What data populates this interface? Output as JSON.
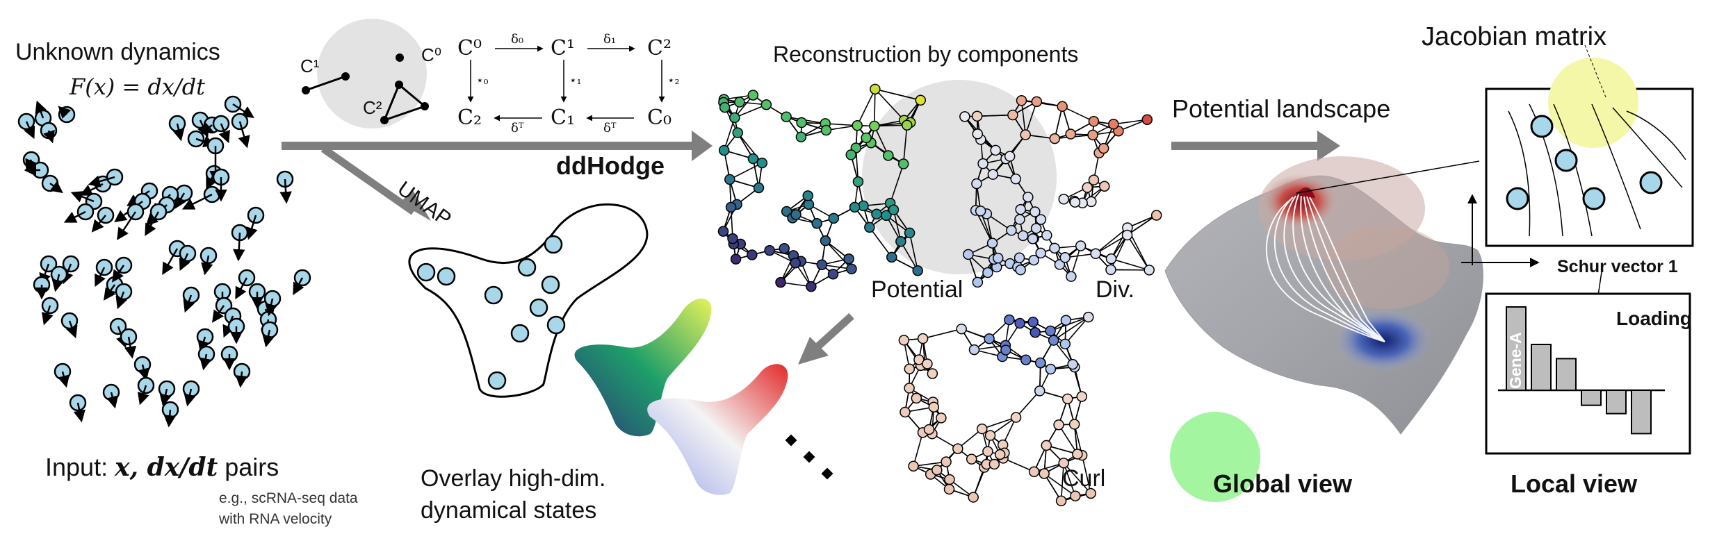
{
  "panel_input": {
    "title": "Unknown dynamics",
    "formula": "F(x) = dx/dt",
    "input_label": "Input:",
    "input_math": "x, dx/dt",
    "input_suffix": "pairs",
    "example_line1": "e.g., scRNA-seq data",
    "example_line2": "with RNA velocity"
  },
  "panel_hodge": {
    "complex_labels": {
      "c0": "C⁰",
      "c1": "C¹",
      "c2": "C²"
    },
    "top_row": [
      "C⁰",
      "C¹",
      "C²"
    ],
    "bottom_row": [
      "C₂",
      "C₁",
      "C₀"
    ],
    "top_arrows": [
      "δ₀",
      "δ₁"
    ],
    "bottom_arrows": [
      "δᵀ",
      "δᵀ"
    ],
    "star_labels": [
      "⋆₀",
      "⋆₁",
      "⋆₂"
    ],
    "method": "ddHodge",
    "umap": "UMAP"
  },
  "panel_overlay": {
    "line1": "Overlay high-dim.",
    "line2": "dynamical states",
    "ellipsis": "⋮"
  },
  "panel_components": {
    "title": "Reconstruction by components",
    "potential": "Potential",
    "divergence": "Div.",
    "curl": "Curl"
  },
  "panel_global": {
    "arrow_label": "Potential landscape",
    "caption": "Global view"
  },
  "panel_local": {
    "jacobian": "Jacobian matrix",
    "schur": "Schur vector 1",
    "loading": "Loading",
    "gene": "Gene-A",
    "caption": "Local view",
    "loading_values": [
      1.0,
      0.55,
      0.38,
      -0.18,
      -0.28,
      -0.52
    ]
  },
  "colors": {
    "cell_fill": "#a9d7ea",
    "arrow_gray": "#7f7f7f",
    "highlight_yellow": "#f4f7a8",
    "highlight_green": "#a3f5a0",
    "gray_disk": "#e3e3e3",
    "bar_fill": "#bdbdbd"
  }
}
